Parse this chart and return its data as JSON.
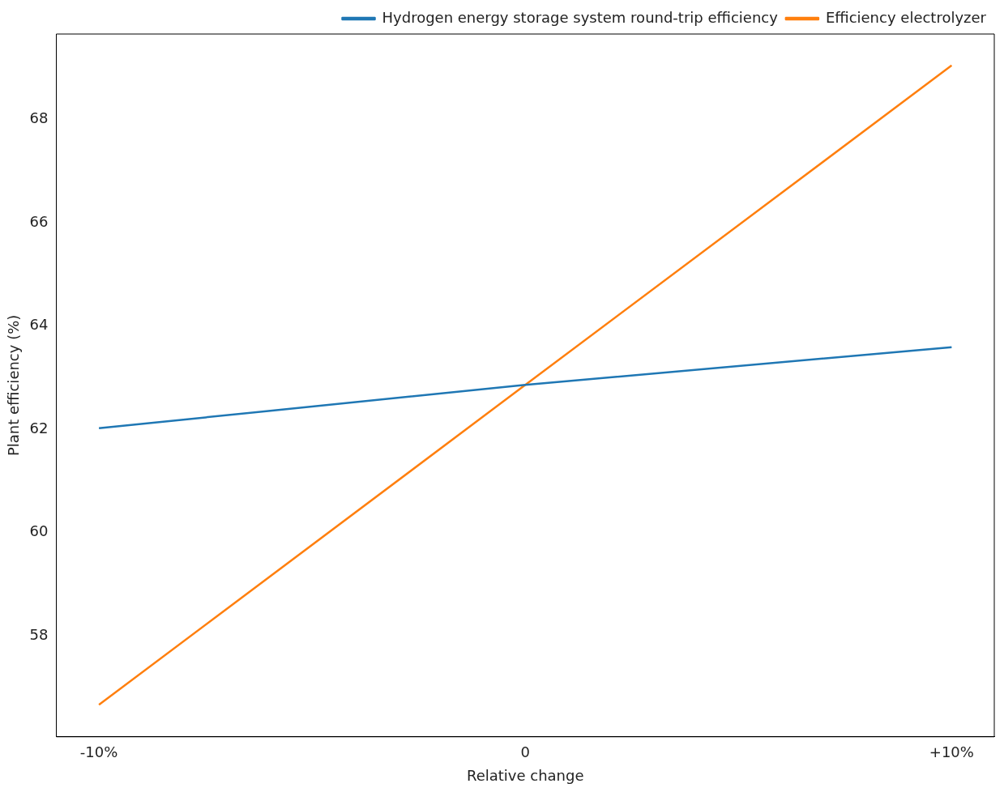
{
  "chart_data": {
    "type": "line",
    "xlabel": "Relative change",
    "ylabel": "Plant efficiency (%)",
    "categories": [
      "-10%",
      "0",
      "+10%"
    ],
    "series": [
      {
        "name": "Hydrogen energy storage system round-trip efficiency",
        "color": "#1f77b4",
        "values": [
          62.02,
          62.86,
          63.59
        ]
      },
      {
        "name": "Efficiency electrolyzer",
        "color": "#ff7f0e",
        "values": [
          56.66,
          62.86,
          69.05
        ]
      }
    ],
    "ylim": [
      56.04,
      69.66
    ],
    "yticks": [
      58,
      60,
      62,
      64,
      66,
      68
    ],
    "grid": false,
    "legend": "top right",
    "marker": "none",
    "line_style": "solid"
  }
}
